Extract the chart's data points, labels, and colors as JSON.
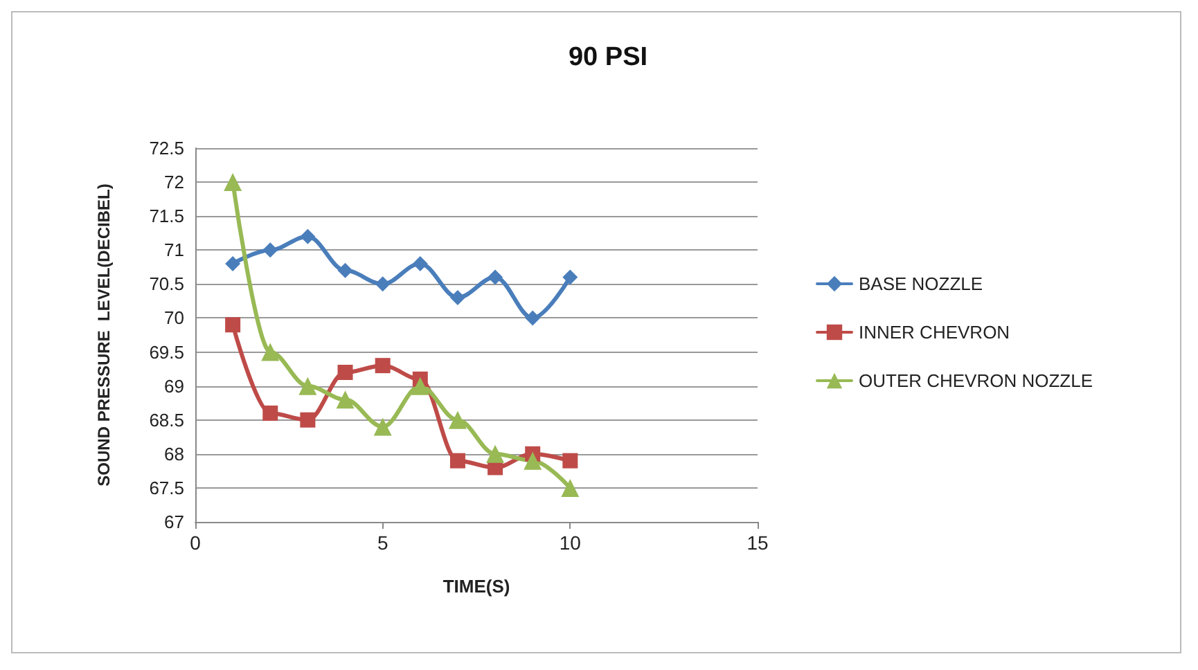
{
  "chart_data": {
    "type": "line",
    "title": "90 PSI",
    "xlabel": "TIME(S)",
    "ylabel": "SOUND PRESSURE  LEVEL(DECIBEL)",
    "x": [
      1,
      2,
      3,
      4,
      5,
      6,
      7,
      8,
      9,
      10
    ],
    "series": [
      {
        "name": "BASE NOZZLE",
        "color": "#4a7ebb",
        "marker": "diamond",
        "values": [
          70.8,
          71,
          71.2,
          70.7,
          70.5,
          70.8,
          70.3,
          70.6,
          70,
          70.6
        ]
      },
      {
        "name": "INNER CHEVRON",
        "color": "#be4b48",
        "marker": "square",
        "values": [
          69.9,
          68.6,
          68.5,
          69.2,
          69.3,
          69.1,
          67.9,
          67.8,
          68,
          67.9
        ]
      },
      {
        "name": "OUTER CHEVRON NOZZLE",
        "color": "#98b954",
        "marker": "triangle",
        "values": [
          72,
          69.5,
          69,
          68.8,
          68.4,
          69,
          68.5,
          68,
          67.9,
          67.5
        ]
      }
    ],
    "xlim": [
      0,
      15
    ],
    "xticks": [
      0,
      5,
      10,
      15
    ],
    "ylim": [
      67,
      72.5
    ],
    "yticks": [
      67,
      67.5,
      68,
      68.5,
      69,
      69.5,
      70,
      70.5,
      71,
      71.5,
      72,
      72.5
    ],
    "grid": "y",
    "legend": "right"
  }
}
